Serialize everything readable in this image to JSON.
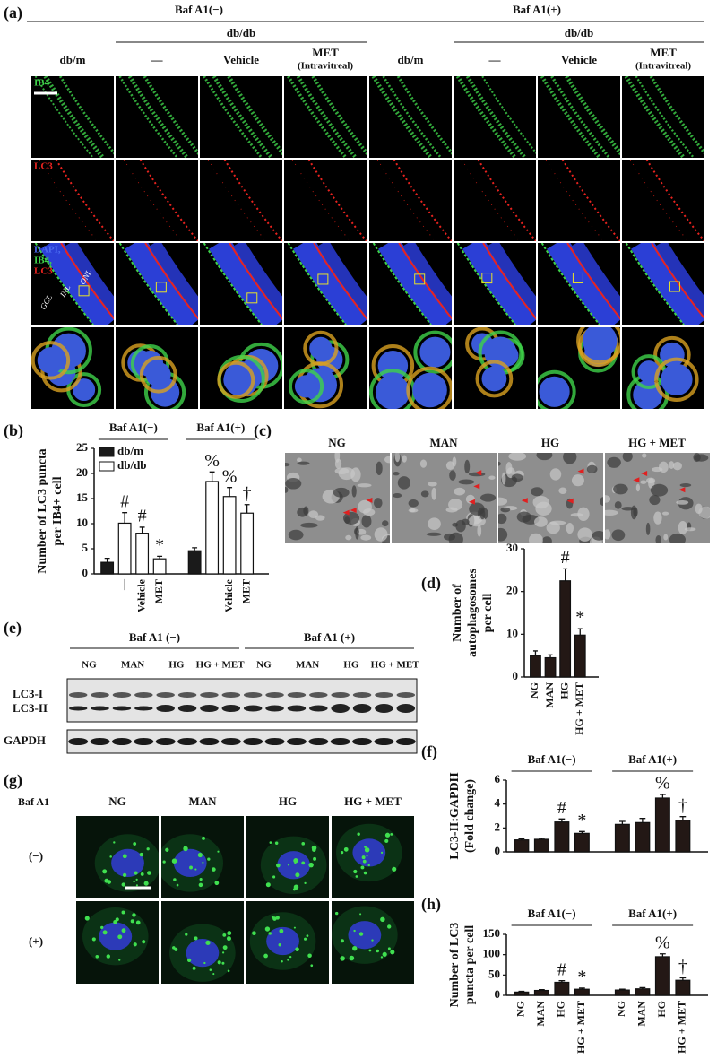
{
  "panel_a": {
    "label": "(a)",
    "groups": [
      {
        "title": "Baf A1(−)",
        "subtitle": "db/db",
        "columns": [
          "db/m",
          "—",
          "Vehicle",
          "MET"
        ],
        "column_note": "(Intravitreal)"
      },
      {
        "title": "Baf A1(+)",
        "subtitle": "db/db",
        "columns": [
          "db/m",
          "—",
          "Vehicle",
          "MET"
        ],
        "column_note": "(Intravitreal)"
      }
    ],
    "rows": [
      "IB4",
      "LC3",
      [
        "DAPI,",
        "IB4,",
        "LC3"
      ]
    ],
    "layers": [
      "GCL",
      "INL",
      "ONL"
    ]
  },
  "panel_c": {
    "label": "(c)",
    "columns": [
      "NG",
      "MAN",
      "HG",
      "HG + MET"
    ]
  },
  "panel_e": {
    "label": "(e)",
    "groups": [
      "Baf A1 (−)",
      "Baf A1 (+)"
    ],
    "lanes": [
      "NG",
      "MAN",
      "HG",
      "HG + MET"
    ],
    "bands": [
      "LC3-I",
      "LC3-II",
      "GAPDH"
    ]
  },
  "panel_g": {
    "label": "(g)",
    "row_header": "Baf A1",
    "columns": [
      "NG",
      "MAN",
      "HG",
      "HG + MET"
    ],
    "rows": [
      "(−)",
      "(+)"
    ]
  },
  "chart_data": [
    {
      "type": "bar",
      "panel": "(b)",
      "ylabel": [
        "Number of LC3 puncta",
        "per IB4+ cell"
      ],
      "groups": [
        "Baf A1(−)",
        "Baf A1(+)"
      ],
      "categories": [
        null,
        "—",
        "Vehicle",
        "MET",
        null,
        "—",
        "Vehicle",
        "MET"
      ],
      "series": [
        {
          "name": "db/m",
          "color": "#1a1a1a",
          "values": [
            2.3,
            null,
            null,
            null,
            4.6,
            null,
            null,
            null
          ],
          "errors": [
            0.8,
            null,
            null,
            null,
            0.6,
            null,
            null,
            null
          ]
        },
        {
          "name": "db/db",
          "color": "#ffffff",
          "values": [
            null,
            10.1,
            8.1,
            3.0,
            null,
            18.4,
            15.4,
            12.1
          ],
          "errors": [
            null,
            2.1,
            1.2,
            0.5,
            null,
            1.9,
            1.8,
            1.7
          ]
        }
      ],
      "markers": [
        null,
        "#",
        "#",
        "*",
        null,
        "%",
        "%",
        "†"
      ],
      "ylim": [
        0,
        25
      ],
      "yticks": [
        0,
        5,
        10,
        15,
        20,
        25
      ]
    },
    {
      "type": "bar",
      "panel": "(d)",
      "ylabel": [
        "Number of",
        "autophagosomes",
        "per cell"
      ],
      "categories": [
        "NG",
        "MAN",
        "HG",
        "HG + MET"
      ],
      "values": [
        5.0,
        4.5,
        22.5,
        9.8
      ],
      "errors": [
        1.1,
        0.7,
        2.8,
        1.5
      ],
      "color": "#231815",
      "markers": [
        null,
        null,
        "#",
        "*"
      ],
      "ylim": [
        0,
        30
      ],
      "yticks": [
        0,
        10,
        20,
        30
      ]
    },
    {
      "type": "bar",
      "panel": "(f)",
      "ylabel": [
        "LC3-II:GAPDH",
        "(Fold change)"
      ],
      "groups": [
        "Baf A1(−)",
        "Baf A1(+)"
      ],
      "values": [
        1.0,
        1.05,
        2.5,
        1.55,
        2.3,
        2.45,
        4.5,
        2.65
      ],
      "errors": [
        0.1,
        0.1,
        0.25,
        0.15,
        0.25,
        0.35,
        0.3,
        0.3
      ],
      "color": "#231815",
      "markers": [
        null,
        null,
        "#",
        "*",
        null,
        null,
        "%",
        "†"
      ],
      "ylim": [
        0,
        6
      ],
      "yticks": [
        0,
        2,
        4,
        6
      ]
    },
    {
      "type": "bar",
      "panel": "(h)",
      "ylabel": [
        "Number of LC3",
        "puncta per cell"
      ],
      "groups": [
        "Baf A1(−)",
        "Baf A1(+)"
      ],
      "categories": [
        "NG",
        "MAN",
        "HG",
        "HG + MET",
        "NG",
        "MAN",
        "HG",
        "HG + MET"
      ],
      "values": [
        8,
        12,
        32,
        15,
        13,
        16,
        95,
        37
      ],
      "errors": [
        2,
        2,
        4,
        3,
        2,
        3,
        7,
        6
      ],
      "color": "#231815",
      "markers": [
        null,
        null,
        "#",
        "*",
        null,
        null,
        "%",
        "†"
      ],
      "ylim": [
        0,
        150
      ],
      "yticks": [
        0,
        50,
        100,
        150
      ]
    }
  ]
}
